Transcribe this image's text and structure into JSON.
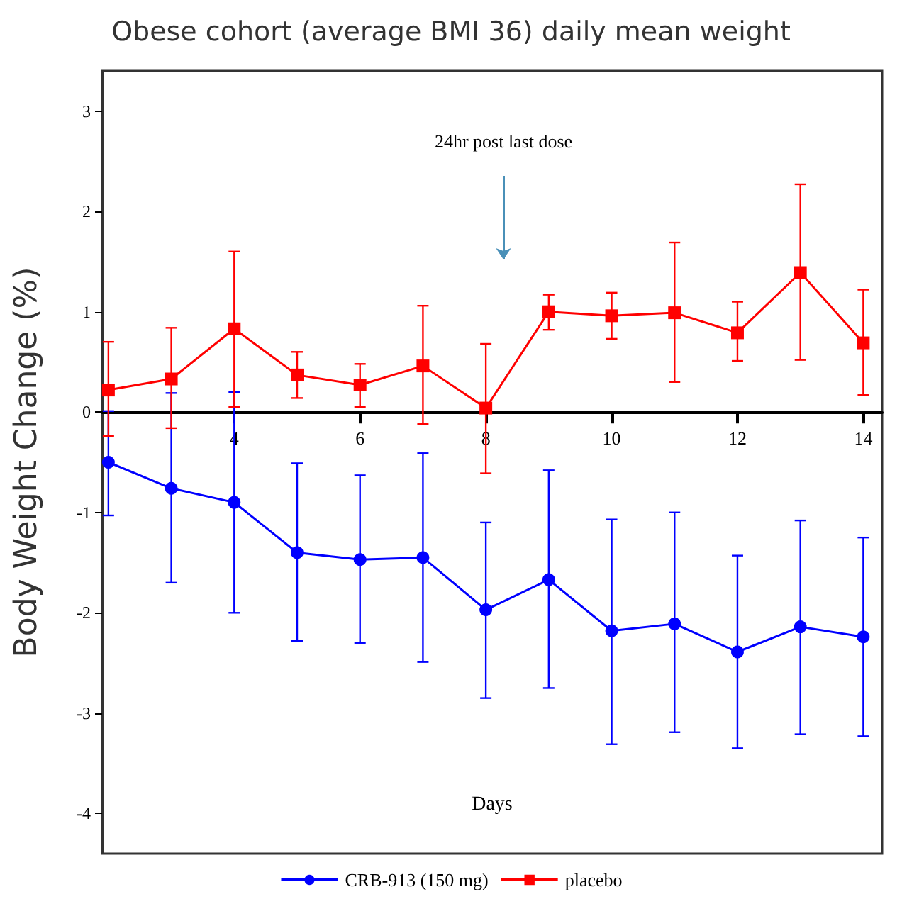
{
  "chart_data": {
    "type": "line",
    "title": "Obese cohort (average BMI 36) daily mean weight",
    "xlabel": "Days",
    "ylabel": "Body Weight Change (%)",
    "annotations": [
      "24hr post last dose"
    ],
    "x": [
      2,
      3,
      4,
      5,
      6,
      7,
      8,
      9,
      10,
      11,
      12,
      13,
      14
    ],
    "series": [
      {
        "name": "CRB-913 (150 mg)",
        "color": "#0000ff",
        "marker": "circle",
        "values": [
          -0.5,
          -0.76,
          -0.9,
          -1.4,
          -1.47,
          -1.45,
          -1.97,
          -1.67,
          -2.18,
          -2.11,
          -2.39,
          -2.14,
          -2.24
        ],
        "errors": [
          [
            -1.03,
            0.01
          ],
          [
            -1.7,
            0.19
          ],
          [
            -2.0,
            0.2
          ],
          [
            -2.28,
            -0.51
          ],
          [
            -2.3,
            -0.63
          ],
          [
            -2.49,
            -0.41
          ],
          [
            -2.85,
            -1.1
          ],
          [
            -2.75,
            -0.58
          ],
          [
            -3.31,
            -1.07
          ],
          [
            -3.19,
            -1.0
          ],
          [
            -3.35,
            -1.43
          ],
          [
            -3.21,
            -1.08
          ],
          [
            -3.23,
            -1.25
          ]
        ]
      },
      {
        "name": "placebo",
        "color": "#ff0000",
        "marker": "square",
        "values": [
          0.22,
          0.33,
          0.83,
          0.37,
          0.27,
          0.46,
          0.04,
          1.0,
          0.96,
          0.99,
          0.79,
          1.39,
          0.69
        ],
        "errors": [
          [
            -0.24,
            0.7
          ],
          [
            -0.16,
            0.84
          ],
          [
            0.05,
            1.6
          ],
          [
            0.14,
            0.6
          ],
          [
            0.05,
            0.48
          ],
          [
            -0.12,
            1.06
          ],
          [
            -0.61,
            0.68
          ],
          [
            0.82,
            1.17
          ],
          [
            0.73,
            1.19
          ],
          [
            0.3,
            1.69
          ],
          [
            0.51,
            1.1
          ],
          [
            0.52,
            2.27
          ],
          [
            0.17,
            1.22
          ]
        ]
      }
    ],
    "xlim": [
      1.9,
      14.3
    ],
    "xticks": [
      4,
      6,
      8,
      10,
      12,
      14
    ],
    "ylim": [
      -4.4,
      3.4
    ],
    "yticks": [
      -4,
      -3,
      -2,
      -1,
      0,
      1,
      2,
      3
    ],
    "grid": false,
    "legend": "bottom",
    "line_style": "solid"
  }
}
